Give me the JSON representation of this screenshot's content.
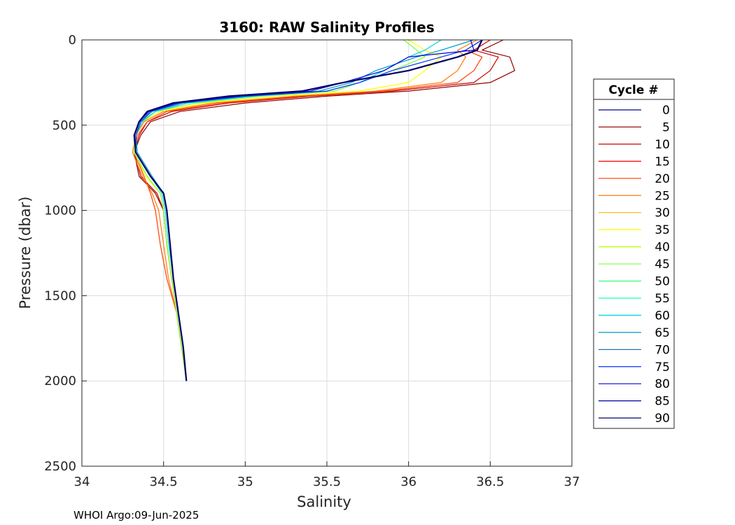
{
  "chart_data": {
    "type": "line",
    "title": "3160: RAW Salinity Profiles",
    "xlabel": "Salinity",
    "ylabel": "Pressure (dbar)",
    "xlim": [
      34,
      37
    ],
    "ylim": [
      0,
      2500
    ],
    "y_reversed": true,
    "grid": true,
    "x_ticks": [
      34,
      34.5,
      35,
      35.5,
      36,
      36.5,
      37
    ],
    "x_tick_labels": [
      "34",
      "34.5",
      "35",
      "35.5",
      "36",
      "36.5",
      "37"
    ],
    "y_ticks": [
      0,
      500,
      1000,
      1500,
      2000,
      2500
    ],
    "y_tick_labels": [
      "0",
      "500",
      "1000",
      "1500",
      "2000",
      "2500"
    ],
    "legend": {
      "title": "Cycle #",
      "position": "right",
      "entries": [
        {
          "label": "0",
          "color": "#00008f"
        },
        {
          "label": "5",
          "color": "#8f0000"
        },
        {
          "label": "10",
          "color": "#c80000"
        },
        {
          "label": "15",
          "color": "#ff0000"
        },
        {
          "label": "20",
          "color": "#ff3c00"
        },
        {
          "label": "25",
          "color": "#ff7800"
        },
        {
          "label": "30",
          "color": "#ffb400"
        },
        {
          "label": "35",
          "color": "#ffff00"
        },
        {
          "label": "40",
          "color": "#b4ff00"
        },
        {
          "label": "45",
          "color": "#78ff3c"
        },
        {
          "label": "50",
          "color": "#3cff78"
        },
        {
          "label": "55",
          "color": "#00ffb4"
        },
        {
          "label": "60",
          "color": "#00d2e6"
        },
        {
          "label": "65",
          "color": "#0096c8"
        },
        {
          "label": "70",
          "color": "#0064b4"
        },
        {
          "label": "75",
          "color": "#0032ff"
        },
        {
          "label": "80",
          "color": "#0000dc"
        },
        {
          "label": "85",
          "color": "#0000a0"
        },
        {
          "label": "90",
          "color": "#000064"
        }
      ]
    },
    "series": [
      {
        "color": "#8f0000",
        "x": [
          36.58,
          36.45,
          36.62,
          36.65,
          36.5,
          36.0,
          35.5,
          35.0,
          34.6,
          34.42,
          34.36,
          34.32,
          34.35,
          34.45,
          34.5,
          34.52,
          34.55,
          34.58,
          34.61,
          34.64
        ],
        "y": [
          0,
          60,
          100,
          180,
          250,
          300,
          330,
          370,
          420,
          480,
          560,
          660,
          800,
          900,
          1000,
          1200,
          1400,
          1600,
          1800,
          2000
        ]
      },
      {
        "color": "#c80000",
        "x": [
          36.5,
          36.4,
          36.55,
          36.5,
          36.4,
          35.9,
          35.4,
          34.9,
          34.55,
          34.4,
          34.35,
          34.32,
          34.36,
          34.46,
          34.5,
          34.52,
          34.55,
          34.58,
          34.61,
          34.64
        ],
        "y": [
          0,
          60,
          100,
          180,
          250,
          300,
          330,
          370,
          420,
          480,
          560,
          660,
          800,
          900,
          1000,
          1200,
          1400,
          1600,
          1800,
          2000
        ]
      },
      {
        "color": "#ff3c00",
        "x": [
          36.45,
          36.35,
          36.45,
          36.4,
          36.3,
          35.85,
          35.35,
          34.85,
          34.52,
          34.4,
          34.34,
          34.32,
          34.38,
          34.42,
          34.45,
          34.48,
          34.52,
          34.58,
          34.61,
          34.64
        ],
        "y": [
          0,
          60,
          100,
          180,
          250,
          300,
          330,
          370,
          420,
          480,
          560,
          660,
          800,
          900,
          1000,
          1200,
          1400,
          1600,
          1800,
          2000
        ]
      },
      {
        "color": "#ff7800",
        "x": [
          36.42,
          36.3,
          36.35,
          36.3,
          36.2,
          35.8,
          35.3,
          34.8,
          34.5,
          34.38,
          34.33,
          34.31,
          34.37,
          34.43,
          34.47,
          34.5,
          34.53,
          34.58,
          34.61,
          34.64
        ],
        "y": [
          0,
          60,
          100,
          180,
          250,
          300,
          330,
          370,
          420,
          480,
          560,
          660,
          800,
          900,
          1000,
          1200,
          1400,
          1600,
          1800,
          2000
        ]
      },
      {
        "color": "#ffff00",
        "x": [
          36.0,
          36.1,
          36.2,
          36.1,
          36.0,
          35.7,
          35.2,
          34.75,
          34.48,
          34.37,
          34.33,
          34.32,
          34.39,
          34.48,
          34.5,
          34.52,
          34.55,
          34.58,
          34.61,
          34.64
        ],
        "y": [
          0,
          60,
          100,
          180,
          250,
          300,
          330,
          370,
          420,
          480,
          560,
          660,
          800,
          900,
          1000,
          1200,
          1400,
          1600,
          1800,
          2000
        ]
      },
      {
        "color": "#78ff3c",
        "x": [
          35.97,
          36.05,
          36.1,
          35.9,
          35.7,
          35.55,
          35.1,
          34.7,
          34.45,
          34.36,
          34.32,
          34.32,
          34.4,
          34.48,
          34.5,
          34.52,
          34.55,
          34.58,
          34.61,
          34.64
        ],
        "y": [
          0,
          60,
          100,
          180,
          250,
          300,
          330,
          370,
          420,
          480,
          560,
          660,
          800,
          900,
          1000,
          1200,
          1400,
          1600,
          1800,
          2000
        ]
      },
      {
        "color": "#00d2e6",
        "x": [
          36.2,
          36.1,
          36.0,
          35.85,
          35.7,
          35.5,
          35.05,
          34.65,
          34.45,
          34.37,
          34.33,
          34.33,
          34.42,
          34.49,
          34.51,
          34.53,
          34.56,
          34.59,
          34.62,
          34.64
        ],
        "y": [
          0,
          60,
          100,
          180,
          250,
          300,
          330,
          370,
          420,
          480,
          560,
          660,
          800,
          900,
          1000,
          1200,
          1400,
          1600,
          1800,
          2000
        ]
      },
      {
        "color": "#0096c8",
        "x": [
          36.4,
          36.2,
          36.05,
          35.8,
          35.65,
          35.45,
          35.0,
          34.62,
          34.43,
          34.36,
          34.33,
          34.34,
          34.43,
          34.5,
          34.52,
          34.54,
          34.56,
          34.59,
          34.62,
          34.64
        ],
        "y": [
          0,
          60,
          100,
          180,
          250,
          300,
          330,
          370,
          420,
          480,
          560,
          660,
          800,
          900,
          1000,
          1200,
          1400,
          1600,
          1800,
          2000
        ]
      },
      {
        "color": "#0032ff",
        "x": [
          36.45,
          36.35,
          36.2,
          35.9,
          35.7,
          35.5,
          35.0,
          34.6,
          34.42,
          34.36,
          34.33,
          34.33,
          34.42,
          34.5,
          34.52,
          34.54,
          34.56,
          34.59,
          34.62,
          34.64
        ],
        "y": [
          0,
          60,
          100,
          180,
          250,
          300,
          330,
          370,
          420,
          480,
          560,
          660,
          800,
          900,
          1000,
          1200,
          1400,
          1600,
          1800,
          2000
        ]
      },
      {
        "color": "#0000dc",
        "x": [
          36.38,
          36.4,
          36.0,
          35.85,
          35.6,
          35.4,
          34.95,
          34.58,
          34.41,
          34.35,
          34.32,
          34.33,
          34.42,
          34.5,
          34.52,
          34.54,
          34.56,
          34.59,
          34.62,
          34.64
        ],
        "y": [
          0,
          60,
          100,
          180,
          250,
          300,
          330,
          370,
          420,
          480,
          560,
          660,
          800,
          900,
          1000,
          1200,
          1400,
          1600,
          1800,
          2000
        ]
      },
      {
        "color": "#000064",
        "x": [
          36.45,
          36.42,
          36.3,
          36.0,
          35.6,
          35.35,
          34.9,
          34.56,
          34.4,
          34.35,
          34.32,
          34.33,
          34.42,
          34.5,
          34.52,
          34.54,
          34.56,
          34.59,
          34.62,
          34.64
        ],
        "y": [
          0,
          60,
          100,
          180,
          250,
          300,
          330,
          370,
          420,
          480,
          560,
          660,
          800,
          900,
          1000,
          1200,
          1400,
          1600,
          1800,
          2000
        ]
      }
    ]
  },
  "footer": "WHOI Argo:09-Jun-2025"
}
